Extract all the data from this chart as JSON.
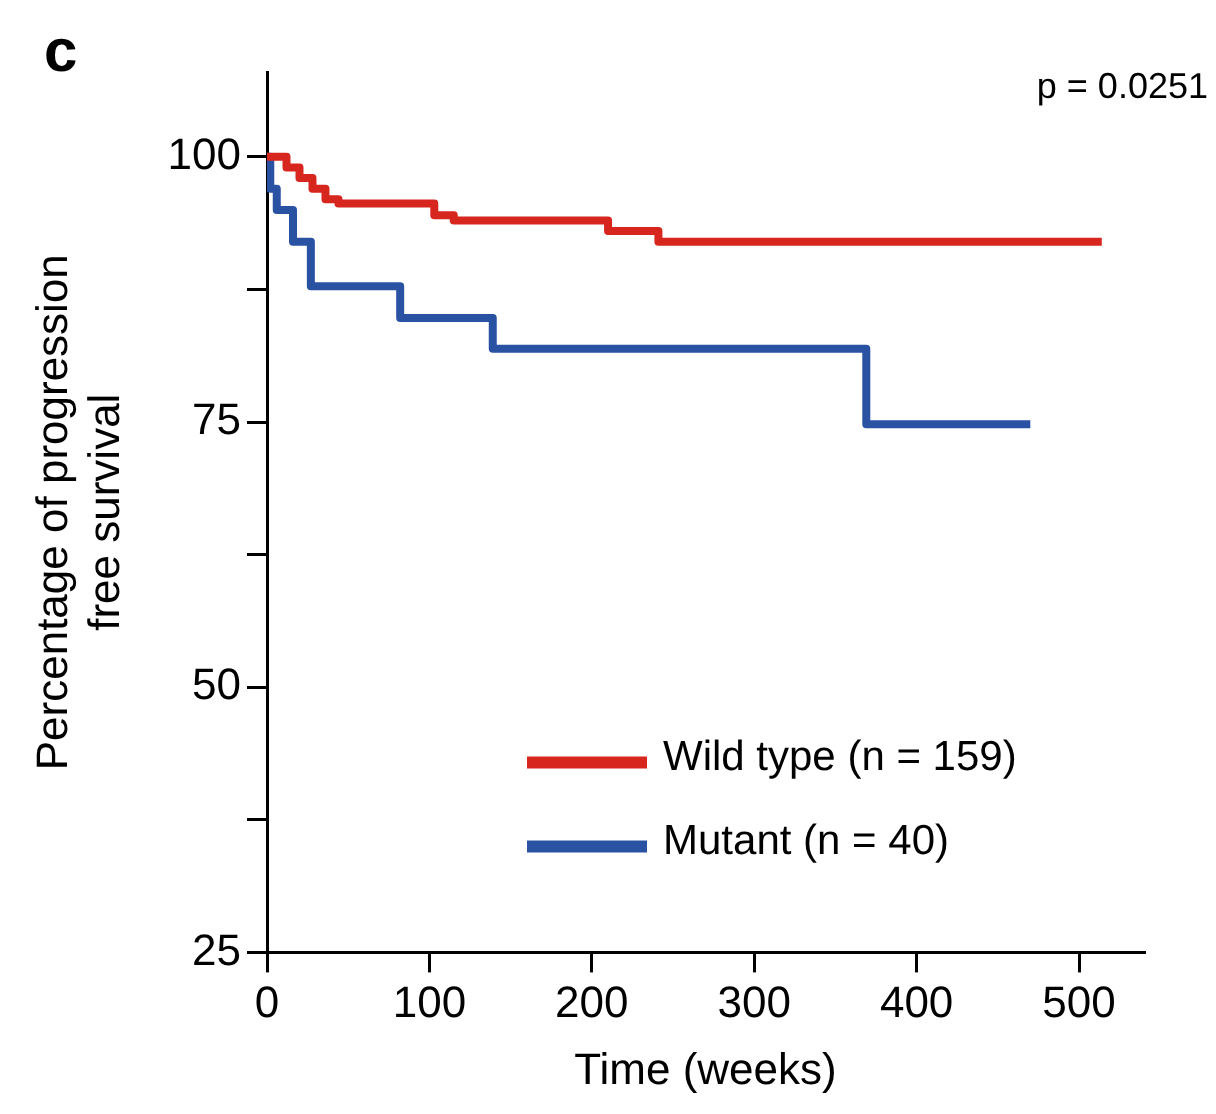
{
  "chart_data": {
    "type": "step",
    "title": "c",
    "xlabel": "Time (weeks)",
    "ylabel": "Percentage of progression\nfree survival",
    "annotations": [
      "p = 0.0251"
    ],
    "xlim": [
      0,
      540
    ],
    "xticks": [
      0,
      100,
      200,
      300,
      400,
      500
    ],
    "ylim": [
      25,
      108
    ],
    "yticks": [
      25,
      {
        "value": 37.5,
        "label": null
      },
      50,
      {
        "value": 62.5,
        "label": null
      },
      75,
      {
        "value": 87.5,
        "label": null
      },
      100
    ],
    "grid": false,
    "legend": "bottom right",
    "line_style": "solid",
    "marker": "none",
    "series": [
      {
        "name": "Wild type (n = 159)",
        "color": "#d7261e",
        "x": [
          0,
          6,
          12,
          20,
          28,
          36,
          44,
          103,
          115,
          210,
          241,
          514
        ],
        "values": [
          100,
          100,
          99,
          98,
          97,
          96,
          95.6,
          94.5,
          94,
          93,
          92,
          92
        ]
      },
      {
        "name": "Mutant (n = 40)",
        "color": "#2a52a3",
        "x": [
          0,
          2,
          6,
          16,
          27,
          82,
          139,
          369,
          470
        ],
        "values": [
          100,
          97,
          95,
          92,
          87.8,
          84.8,
          81.9,
          74.8,
          74.8
        ]
      }
    ]
  }
}
